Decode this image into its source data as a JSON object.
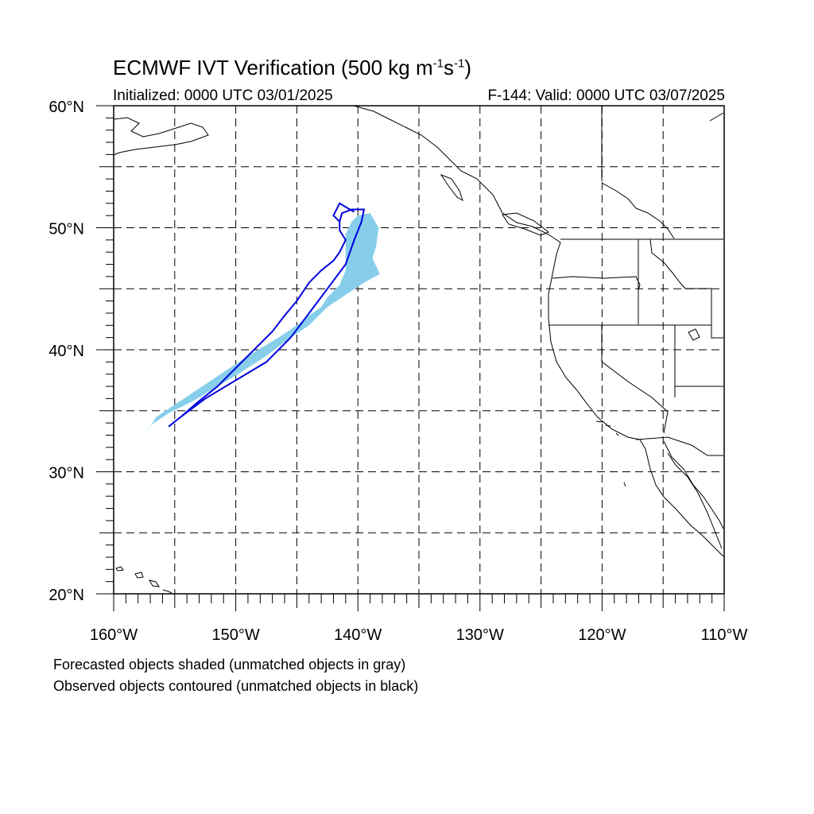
{
  "header": {
    "title_prefix": "ECMWF IVT Verification (500 kg m",
    "title_sup1": "-1",
    "title_mid": "s",
    "title_sup2": "-1",
    "title_suffix": ")",
    "initialized": "Initialized: 0000 UTC 03/01/2025",
    "valid": "F-144: Valid: 0000 UTC 03/07/2025"
  },
  "map": {
    "projection": "cylindrical-equidistant",
    "lon_range": [
      -160,
      -110
    ],
    "lat_range": [
      20,
      60
    ],
    "grid": true,
    "lon_ticks": [
      {
        "value": -160,
        "label": "160°W"
      },
      {
        "value": -150,
        "label": "150°W"
      },
      {
        "value": -140,
        "label": "140°W"
      },
      {
        "value": -130,
        "label": "130°W"
      },
      {
        "value": -120,
        "label": "120°W"
      },
      {
        "value": -110,
        "label": "110°W"
      }
    ],
    "lat_ticks": [
      {
        "value": 60,
        "label": "60°N"
      },
      {
        "value": 50,
        "label": "50°N"
      },
      {
        "value": 40,
        "label": "40°N"
      },
      {
        "value": 30,
        "label": "30°N"
      },
      {
        "value": 20,
        "label": "20°N"
      }
    ],
    "colors": {
      "forecast_fill": "#87ceeb",
      "observed_contour": "#0000dd",
      "coastline": "#000000",
      "grid": "#000000"
    },
    "forecast_object": [
      [
        -157.5,
        33.0
      ],
      [
        -156.5,
        34.5
      ],
      [
        -155.0,
        35.5
      ],
      [
        -153.5,
        36.5
      ],
      [
        -152.0,
        37.5
      ],
      [
        -150.5,
        38.5
      ],
      [
        -148.5,
        39.8
      ],
      [
        -146.5,
        41.0
      ],
      [
        -145.0,
        42.0
      ],
      [
        -144.0,
        42.8
      ],
      [
        -143.0,
        43.5
      ],
      [
        -142.5,
        44.3
      ],
      [
        -141.5,
        45.3
      ],
      [
        -141.0,
        46.5
      ],
      [
        -141.0,
        48.0
      ],
      [
        -141.0,
        49.5
      ],
      [
        -140.5,
        50.5
      ],
      [
        -140.0,
        51.0
      ],
      [
        -139.0,
        51.2
      ],
      [
        -138.3,
        50.0
      ],
      [
        -138.5,
        48.5
      ],
      [
        -138.8,
        47.5
      ],
      [
        -138.2,
        46.2
      ],
      [
        -139.5,
        45.5
      ],
      [
        -141.0,
        44.5
      ],
      [
        -142.5,
        43.5
      ],
      [
        -144.0,
        42.0
      ],
      [
        -145.5,
        41.0
      ],
      [
        -147.5,
        39.5
      ],
      [
        -149.5,
        38.2
      ],
      [
        -151.5,
        37.0
      ],
      [
        -153.5,
        35.8
      ],
      [
        -155.5,
        34.8
      ],
      [
        -157.0,
        33.8
      ],
      [
        -157.5,
        33.0
      ]
    ],
    "observed_object": [
      [
        -155.5,
        33.7
      ],
      [
        -154.5,
        34.5
      ],
      [
        -153.0,
        35.8
      ],
      [
        -151.5,
        37.0
      ],
      [
        -150.0,
        38.5
      ],
      [
        -148.5,
        40.0
      ],
      [
        -147.0,
        41.5
      ],
      [
        -146.0,
        42.8
      ],
      [
        -145.0,
        44.0
      ],
      [
        -144.0,
        45.5
      ],
      [
        -143.0,
        46.5
      ],
      [
        -142.0,
        47.3
      ],
      [
        -141.5,
        48.0
      ],
      [
        -141.0,
        49.0
      ],
      [
        -141.5,
        49.8
      ],
      [
        -141.5,
        50.5
      ],
      [
        -141.3,
        51.2
      ],
      [
        -140.5,
        51.5
      ],
      [
        -139.5,
        51.5
      ],
      [
        -139.7,
        50.5
      ],
      [
        -140.3,
        49.0
      ],
      [
        -141.0,
        47.0
      ],
      [
        -142.5,
        45.0
      ],
      [
        -144.0,
        43.0
      ],
      [
        -145.5,
        41.0
      ],
      [
        -147.5,
        39.0
      ],
      [
        -150.0,
        37.5
      ],
      [
        -152.5,
        36.0
      ],
      [
        -154.5,
        34.5
      ],
      [
        -155.5,
        33.7
      ]
    ],
    "observed_hook": [
      [
        -141.5,
        50.5
      ],
      [
        -142.0,
        51.0
      ],
      [
        -141.5,
        52.0
      ],
      [
        -141.0,
        51.7
      ],
      [
        -140.3,
        51.3
      ]
    ]
  },
  "footer": {
    "note1": "Forecasted objects shaded (unmatched objects in gray)",
    "note2": "Observed objects contoured (unmatched objects in black)"
  }
}
